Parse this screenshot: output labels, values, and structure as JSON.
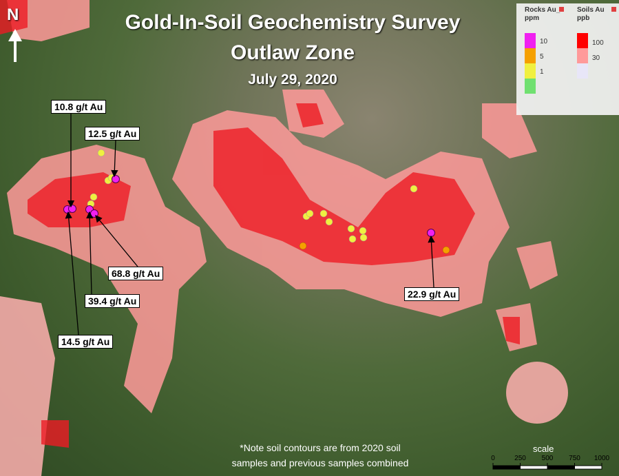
{
  "title": "Gold-In-Soil Geochemistry Survey",
  "subtitle": "Outlaw Zone",
  "date": "July 29, 2020",
  "north": "N",
  "legend": {
    "rocks": {
      "title": "Rocks Au_",
      "unit": "ppm",
      "swatches": [
        "#f020f0",
        "#f5a000",
        "#f0f040",
        "#70e070"
      ],
      "labels": [
        "10",
        "5",
        "1"
      ]
    },
    "soils": {
      "title": "Soils Au",
      "unit": "ppb",
      "swatches": [
        "#ff0000",
        "#ff9a9a",
        "#e8e6f8"
      ],
      "labels": [
        "100",
        "30"
      ]
    }
  },
  "callouts": [
    "10.8 g/t Au",
    "12.5 g/t Au",
    "68.8 g/t Au",
    "39.4 g/t Au",
    "14.5 g/t Au",
    "22.9 g/t Au"
  ],
  "note": [
    "*Note soil contours are from 2020 soil",
    "samples and previous samples combined"
  ],
  "scale": {
    "title": "scale",
    "ticks": [
      0,
      250,
      500,
      750,
      1000
    ]
  }
}
